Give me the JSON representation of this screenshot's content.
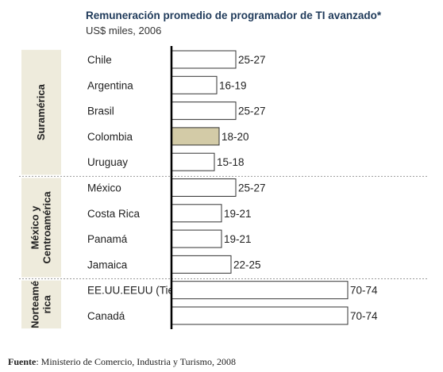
{
  "chart_data": {
    "type": "bar",
    "orientation": "horizontal",
    "title": "Remuneración promedio de programador  de TI avanzado*",
    "subtitle": "US$ miles, 2006",
    "groups": [
      {
        "name": "Suramérica",
        "items": [
          {
            "category": "Chile",
            "low": 25,
            "high": 27,
            "label": "25-27",
            "highlight": false
          },
          {
            "category": "Argentina",
            "low": 16,
            "high": 19,
            "label": "16-19",
            "highlight": false
          },
          {
            "category": "Brasil",
            "low": 25,
            "high": 27,
            "label": "25-27",
            "highlight": false
          },
          {
            "category": "Colombia",
            "low": 18,
            "high": 20,
            "label": "18-20",
            "highlight": true
          },
          {
            "category": "Uruguay",
            "low": 15,
            "high": 18,
            "label": "15-18",
            "highlight": false
          }
        ]
      },
      {
        "name": "México y Centroamérica",
        "name_lines": [
          "México y",
          "Centroamérica"
        ],
        "items": [
          {
            "category": "México",
            "low": 25,
            "high": 27,
            "label": "25-27",
            "highlight": false
          },
          {
            "category": "Costa Rica",
            "low": 19,
            "high": 21,
            "label": "19-21",
            "highlight": false
          },
          {
            "category": "Panamá",
            "low": 19,
            "high": 21,
            "label": "19-21",
            "highlight": false
          },
          {
            "category": "Jamaica",
            "low": 22,
            "high": 25,
            "label": "22-25",
            "highlight": false
          }
        ]
      },
      {
        "name": "Norteamérica",
        "name_lines": [
          "Norteamé",
          "rica"
        ],
        "items": [
          {
            "category": "EE.UU.EEUU (Tier II)",
            "low": 70,
            "high": 74,
            "label": "70-74",
            "highlight": false
          },
          {
            "category": "Canadá",
            "low": 70,
            "high": 74,
            "label": "70-74",
            "highlight": false
          }
        ]
      }
    ],
    "colors": {
      "highlight": "#d3cba7",
      "bar": "#ffffff",
      "group_box": "#eeebdc",
      "axis": "#000000"
    }
  },
  "source": {
    "label": "Fuente",
    "text": ": Ministerio de Comercio, Industria y Turismo, 2008"
  }
}
